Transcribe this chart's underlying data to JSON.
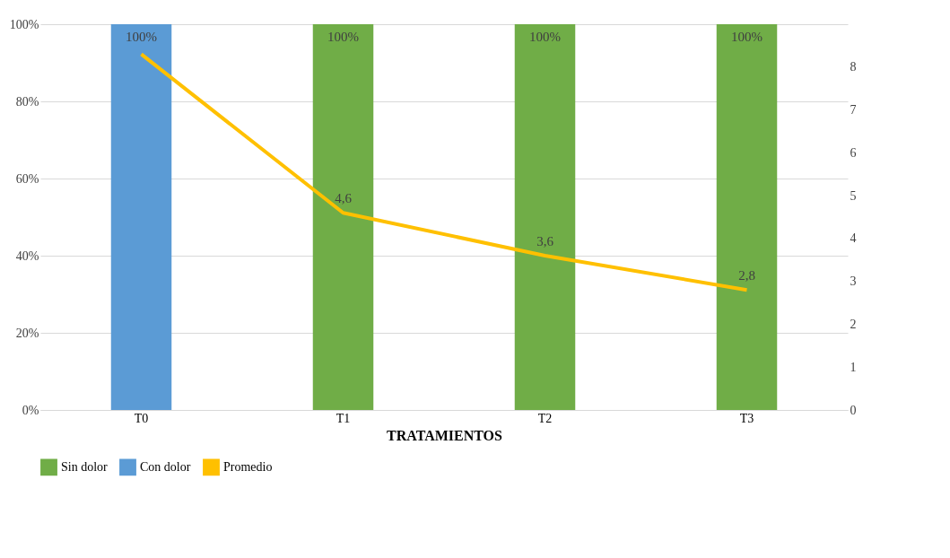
{
  "chart_data": {
    "type": "bar",
    "xlabel": "TRATAMIENTOS",
    "categories": [
      "T0",
      "T1",
      "T2",
      "T3"
    ],
    "series": [
      {
        "name": "Sin dolor",
        "color": "#70ad47",
        "values": [
          null,
          100,
          100,
          100
        ],
        "value_labels": [
          null,
          "100%",
          "100%",
          "100%"
        ]
      },
      {
        "name": "Con dolor",
        "color": "#5b9bd5",
        "values": [
          100,
          null,
          null,
          null
        ],
        "value_labels": [
          "100%",
          null,
          null,
          null
        ]
      },
      {
        "name": "Promedio",
        "type": "line",
        "axis": "y2",
        "color": "#ffc000",
        "values": [
          8.3,
          4.6,
          3.6,
          2.8
        ],
        "value_labels": [
          null,
          "4,6",
          "3,6",
          "2,8"
        ]
      }
    ],
    "ylim": [
      0,
      100
    ],
    "yticks": [
      {
        "value": 0,
        "label": "0%"
      },
      {
        "value": 20,
        "label": "20%"
      },
      {
        "value": 40,
        "label": "40%"
      },
      {
        "value": 60,
        "label": "60%"
      },
      {
        "value": 80,
        "label": "80%"
      },
      {
        "value": 100,
        "label": "100%"
      }
    ],
    "y2lim": [
      0,
      9
    ],
    "y2ticks": [
      0,
      1,
      2,
      3,
      4,
      5,
      6,
      7,
      8
    ],
    "grid": "y",
    "legend": "bottom"
  }
}
